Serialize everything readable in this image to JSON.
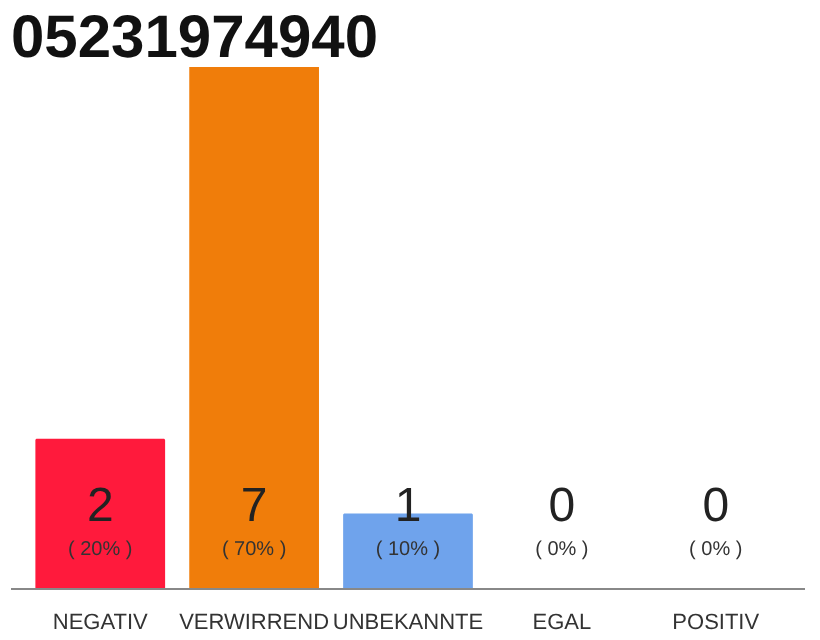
{
  "chart_data": {
    "type": "bar",
    "title": "05231974940",
    "categories": [
      "NEGATIV",
      "VERWIRREND",
      "UNBEKANNTE",
      "EGAL",
      "POSITIV"
    ],
    "values": [
      2,
      7,
      1,
      0,
      0
    ],
    "colors": [
      "#ff1a3c",
      "#f07d0a",
      "#6fa3ec",
      "#cccccc",
      "#cccccc"
    ],
    "data_labels": true,
    "annotations": [
      "( 20% )",
      "( 70% )",
      "( 10% )",
      "( 0% )",
      "( 0% )"
    ]
  }
}
